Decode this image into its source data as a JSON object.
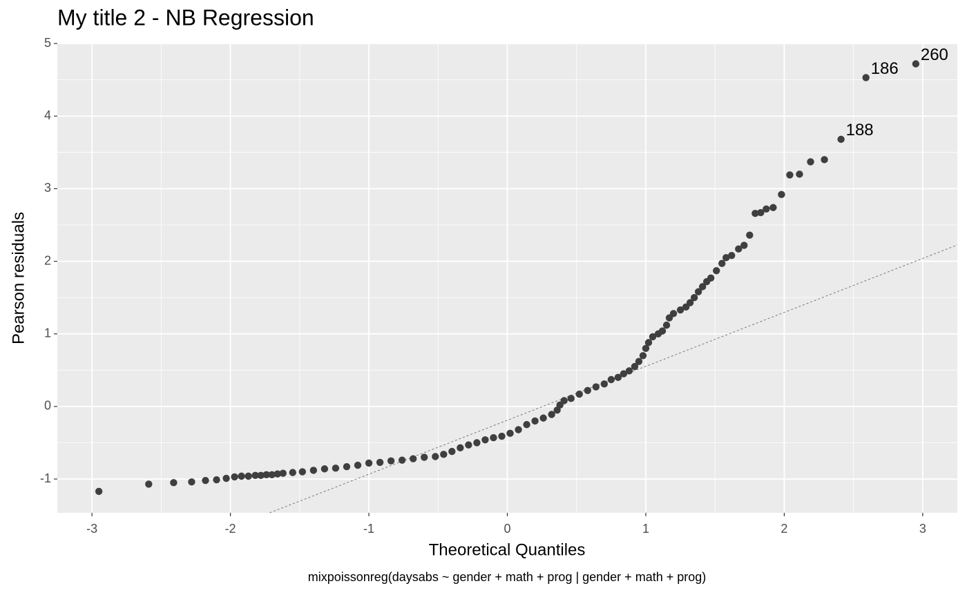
{
  "chart_data": {
    "type": "scatter",
    "title": "My title 2 - NB Regression",
    "x_label": "Theoretical Quantiles",
    "y_label": "Pearson residuals",
    "caption": "mixpoissonreg(daysabs ~ gender + math + prog | gender + math + prog)",
    "color": "#3f3f3f",
    "xlim": [
      -3.25,
      3.25
    ],
    "ylim": [
      -1.465,
      5.01
    ],
    "xticks": [
      -3,
      -2,
      -1,
      0,
      1,
      2,
      3
    ],
    "yticks": [
      -1,
      0,
      1,
      2,
      3,
      4,
      5
    ],
    "x_minor_ticks": [
      -2.5,
      -1.5,
      -0.5,
      0.5,
      1.5,
      2.5
    ],
    "y_minor_ticks": [
      -0.5,
      0.5,
      1.5,
      2.5,
      3.5,
      4.5
    ],
    "grid": true,
    "reference_line": {
      "intercept": -0.19,
      "slope": 0.743
    },
    "x": [
      -2.95,
      -2.59,
      -2.41,
      -2.28,
      -2.18,
      -2.1,
      -2.03,
      -1.97,
      -1.92,
      -1.87,
      -1.82,
      -1.78,
      -1.74,
      -1.7,
      -1.66,
      -1.62,
      -1.55,
      -1.48,
      -1.4,
      -1.32,
      -1.24,
      -1.16,
      -1.08,
      -1.0,
      -0.92,
      -0.84,
      -0.76,
      -0.68,
      -0.6,
      -0.52,
      -0.46,
      -0.4,
      -0.34,
      -0.28,
      -0.22,
      -0.16,
      -0.1,
      -0.04,
      0.02,
      0.08,
      0.14,
      0.2,
      0.26,
      0.32,
      0.36,
      0.38,
      0.41,
      0.46,
      0.52,
      0.58,
      0.64,
      0.7,
      0.75,
      0.8,
      0.84,
      0.88,
      0.92,
      0.95,
      0.98,
      1.0,
      1.02,
      1.05,
      1.09,
      1.12,
      1.15,
      1.17,
      1.2,
      1.25,
      1.29,
      1.32,
      1.35,
      1.38,
      1.41,
      1.44,
      1.47,
      1.51,
      1.55,
      1.58,
      1.62,
      1.67,
      1.71,
      1.75,
      1.79,
      1.83,
      1.87,
      1.92,
      1.98,
      2.04,
      2.11,
      2.19,
      2.29,
      2.41,
      2.59,
      2.95
    ],
    "values": [
      -1.17,
      -1.07,
      -1.05,
      -1.04,
      -1.02,
      -1.01,
      -0.99,
      -0.97,
      -0.96,
      -0.96,
      -0.95,
      -0.95,
      -0.94,
      -0.94,
      -0.93,
      -0.92,
      -0.91,
      -0.9,
      -0.88,
      -0.86,
      -0.85,
      -0.83,
      -0.81,
      -0.78,
      -0.77,
      -0.75,
      -0.74,
      -0.72,
      -0.7,
      -0.69,
      -0.66,
      -0.62,
      -0.57,
      -0.53,
      -0.5,
      -0.46,
      -0.43,
      -0.41,
      -0.37,
      -0.32,
      -0.25,
      -0.2,
      -0.16,
      -0.11,
      -0.05,
      0.02,
      0.08,
      0.11,
      0.17,
      0.22,
      0.27,
      0.31,
      0.37,
      0.4,
      0.45,
      0.49,
      0.55,
      0.62,
      0.7,
      0.8,
      0.88,
      0.96,
      1.0,
      1.04,
      1.12,
      1.22,
      1.28,
      1.33,
      1.37,
      1.43,
      1.5,
      1.58,
      1.65,
      1.72,
      1.77,
      1.87,
      1.97,
      2.05,
      2.08,
      2.17,
      2.22,
      2.36,
      2.66,
      2.67,
      2.72,
      2.74,
      2.92,
      3.19,
      3.2,
      3.37,
      3.4,
      3.68,
      4.53,
      4.72
    ],
    "annotations": [
      {
        "text": "186",
        "x": 2.59,
        "y": 4.53
      },
      {
        "text": "188",
        "x": 2.41,
        "y": 3.68
      },
      {
        "text": "260",
        "x": 2.95,
        "y": 4.72
      }
    ]
  }
}
